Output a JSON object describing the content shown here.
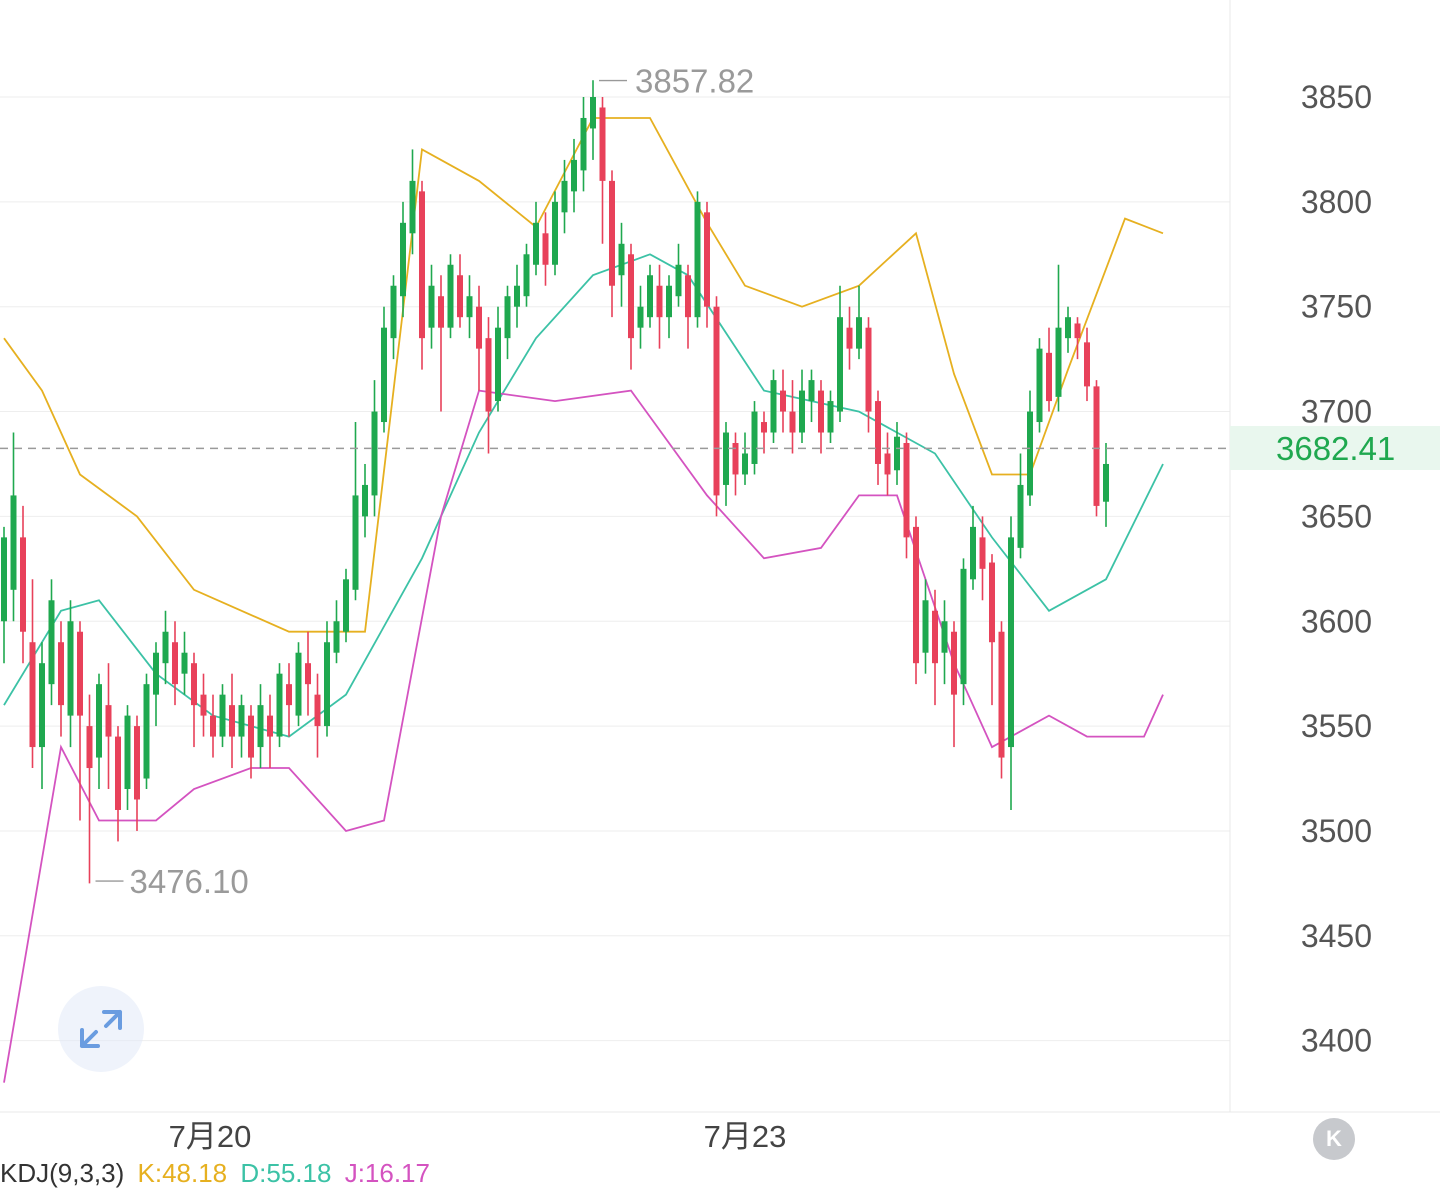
{
  "chart_data": {
    "type": "candlestick",
    "ylim": [
      3380,
      3900
    ],
    "y_ticks": [
      3850,
      3800,
      3750,
      3700,
      3650,
      3600,
      3550,
      3500,
      3450,
      3400
    ],
    "y_tick_labels": [
      "3850",
      "3800",
      "3750",
      "3700",
      "3650",
      "3600",
      "3550",
      "3500",
      "3450",
      "3400"
    ],
    "x_labels": [
      "7月20",
      "7月23"
    ],
    "last_price": 3682.41,
    "last_price_label": "3682.41",
    "max_marker": {
      "value": 3857.82,
      "label": "3857.82"
    },
    "min_marker": {
      "value": 3476.1,
      "label": "3476.10"
    },
    "indicator_legend": {
      "name": "KDJ(9,3,3)",
      "k": "K:48.18",
      "d": "D:55.18",
      "j": "J:16.17"
    },
    "colors": {
      "up": "#1fa84f",
      "down": "#e8415a",
      "upper_band": "#e6b020",
      "middle_band": "#3cc2a6",
      "lower_band": "#d453c0"
    },
    "candles": [
      [
        3600,
        3640,
        3580,
        3645
      ],
      [
        3615,
        3660,
        3600,
        3690
      ],
      [
        3640,
        3595,
        3580,
        3655
      ],
      [
        3590,
        3540,
        3530,
        3620
      ],
      [
        3540,
        3580,
        3520,
        3590
      ],
      [
        3570,
        3610,
        3560,
        3620
      ],
      [
        3590,
        3560,
        3545,
        3600
      ],
      [
        3555,
        3600,
        3540,
        3610
      ],
      [
        3595,
        3555,
        3505,
        3600
      ],
      [
        3550,
        3530,
        3475,
        3565
      ],
      [
        3535,
        3570,
        3520,
        3575
      ],
      [
        3560,
        3545,
        3520,
        3580
      ],
      [
        3545,
        3510,
        3495,
        3550
      ],
      [
        3520,
        3555,
        3510,
        3560
      ],
      [
        3550,
        3515,
        3500,
        3555
      ],
      [
        3525,
        3570,
        3520,
        3575
      ],
      [
        3565,
        3585,
        3550,
        3590
      ],
      [
        3580,
        3595,
        3570,
        3605
      ],
      [
        3590,
        3570,
        3560,
        3600
      ],
      [
        3575,
        3585,
        3565,
        3595
      ],
      [
        3580,
        3560,
        3540,
        3585
      ],
      [
        3565,
        3555,
        3545,
        3575
      ],
      [
        3555,
        3545,
        3535,
        3565
      ],
      [
        3545,
        3565,
        3540,
        3570
      ],
      [
        3560,
        3545,
        3530,
        3575
      ],
      [
        3545,
        3560,
        3535,
        3565
      ],
      [
        3555,
        3535,
        3525,
        3560
      ],
      [
        3540,
        3560,
        3530,
        3570
      ],
      [
        3555,
        3545,
        3530,
        3565
      ],
      [
        3545,
        3575,
        3540,
        3580
      ],
      [
        3570,
        3560,
        3545,
        3580
      ],
      [
        3555,
        3585,
        3550,
        3590
      ],
      [
        3580,
        3570,
        3555,
        3595
      ],
      [
        3565,
        3550,
        3535,
        3575
      ],
      [
        3550,
        3590,
        3545,
        3600
      ],
      [
        3585,
        3600,
        3580,
        3610
      ],
      [
        3595,
        3620,
        3590,
        3625
      ],
      [
        3615,
        3660,
        3610,
        3695
      ],
      [
        3650,
        3665,
        3640,
        3675
      ],
      [
        3660,
        3700,
        3650,
        3715
      ],
      [
        3695,
        3740,
        3690,
        3750
      ],
      [
        3735,
        3760,
        3725,
        3765
      ],
      [
        3755,
        3790,
        3745,
        3800
      ],
      [
        3785,
        3810,
        3775,
        3825
      ],
      [
        3805,
        3735,
        3720,
        3810
      ],
      [
        3740,
        3760,
        3730,
        3770
      ],
      [
        3755,
        3740,
        3700,
        3765
      ],
      [
        3740,
        3770,
        3735,
        3775
      ],
      [
        3765,
        3745,
        3740,
        3775
      ],
      [
        3745,
        3755,
        3735,
        3765
      ],
      [
        3750,
        3730,
        3710,
        3760
      ],
      [
        3735,
        3700,
        3680,
        3745
      ],
      [
        3705,
        3740,
        3700,
        3750
      ],
      [
        3735,
        3755,
        3725,
        3760
      ],
      [
        3750,
        3760,
        3740,
        3770
      ],
      [
        3755,
        3775,
        3750,
        3780
      ],
      [
        3770,
        3790,
        3765,
        3800
      ],
      [
        3785,
        3770,
        3760,
        3795
      ],
      [
        3770,
        3800,
        3765,
        3805
      ],
      [
        3795,
        3810,
        3785,
        3820
      ],
      [
        3805,
        3820,
        3795,
        3830
      ],
      [
        3815,
        3840,
        3805,
        3850
      ],
      [
        3835,
        3850,
        3820,
        3858
      ],
      [
        3845,
        3810,
        3780,
        3850
      ],
      [
        3810,
        3760,
        3745,
        3815
      ],
      [
        3765,
        3780,
        3750,
        3790
      ],
      [
        3775,
        3735,
        3720,
        3780
      ],
      [
        3740,
        3750,
        3730,
        3760
      ],
      [
        3745,
        3765,
        3740,
        3770
      ],
      [
        3760,
        3745,
        3730,
        3770
      ],
      [
        3745,
        3760,
        3735,
        3765
      ],
      [
        3755,
        3770,
        3750,
        3780
      ],
      [
        3765,
        3745,
        3730,
        3770
      ],
      [
        3745,
        3800,
        3740,
        3805
      ],
      [
        3795,
        3750,
        3740,
        3800
      ],
      [
        3750,
        3660,
        3650,
        3755
      ],
      [
        3665,
        3690,
        3655,
        3695
      ],
      [
        3685,
        3670,
        3660,
        3690
      ],
      [
        3670,
        3680,
        3665,
        3690
      ],
      [
        3675,
        3700,
        3670,
        3705
      ],
      [
        3695,
        3690,
        3680,
        3700
      ],
      [
        3690,
        3715,
        3685,
        3720
      ],
      [
        3710,
        3700,
        3690,
        3720
      ],
      [
        3700,
        3690,
        3680,
        3715
      ],
      [
        3690,
        3710,
        3685,
        3720
      ],
      [
        3705,
        3715,
        3695,
        3720
      ],
      [
        3710,
        3690,
        3680,
        3715
      ],
      [
        3690,
        3705,
        3685,
        3710
      ],
      [
        3700,
        3745,
        3695,
        3760
      ],
      [
        3740,
        3730,
        3720,
        3750
      ],
      [
        3730,
        3745,
        3725,
        3760
      ],
      [
        3740,
        3700,
        3690,
        3745
      ],
      [
        3705,
        3675,
        3665,
        3710
      ],
      [
        3680,
        3670,
        3660,
        3690
      ],
      [
        3672,
        3688,
        3665,
        3695
      ],
      [
        3685,
        3640,
        3630,
        3690
      ],
      [
        3645,
        3580,
        3570,
        3650
      ],
      [
        3585,
        3610,
        3575,
        3620
      ],
      [
        3605,
        3580,
        3560,
        3615
      ],
      [
        3585,
        3600,
        3570,
        3610
      ],
      [
        3595,
        3565,
        3540,
        3600
      ],
      [
        3570,
        3625,
        3560,
        3630
      ],
      [
        3620,
        3645,
        3615,
        3655
      ],
      [
        3640,
        3625,
        3610,
        3650
      ],
      [
        3628,
        3590,
        3560,
        3632
      ],
      [
        3595,
        3535,
        3525,
        3600
      ],
      [
        3540,
        3640,
        3510,
        3650
      ],
      [
        3635,
        3665,
        3630,
        3680
      ],
      [
        3660,
        3700,
        3655,
        3710
      ],
      [
        3695,
        3730,
        3690,
        3735
      ],
      [
        3728,
        3705,
        3700,
        3740
      ],
      [
        3707,
        3740,
        3700,
        3770
      ],
      [
        3735,
        3745,
        3728,
        3750
      ],
      [
        3742,
        3735,
        3725,
        3745
      ],
      [
        3733,
        3712,
        3705,
        3740
      ],
      [
        3712,
        3655,
        3650,
        3715
      ],
      [
        3657,
        3675,
        3645,
        3685
      ]
    ],
    "upper_band": [
      [
        0,
        3735
      ],
      [
        4,
        3710
      ],
      [
        8,
        3670
      ],
      [
        14,
        3650
      ],
      [
        20,
        3615
      ],
      [
        30,
        3595
      ],
      [
        38,
        3595
      ],
      [
        44,
        3825
      ],
      [
        50,
        3810
      ],
      [
        56,
        3788
      ],
      [
        62,
        3840
      ],
      [
        68,
        3840
      ],
      [
        74,
        3790
      ],
      [
        78,
        3760
      ],
      [
        84,
        3750
      ],
      [
        90,
        3760
      ],
      [
        96,
        3785
      ],
      [
        100,
        3718
      ],
      [
        104,
        3670
      ],
      [
        108,
        3670
      ],
      [
        112,
        3720
      ],
      [
        118,
        3792
      ],
      [
        122,
        3785
      ]
    ],
    "middle_band": [
      [
        0,
        3560
      ],
      [
        6,
        3605
      ],
      [
        10,
        3610
      ],
      [
        16,
        3575
      ],
      [
        22,
        3555
      ],
      [
        30,
        3545
      ],
      [
        36,
        3565
      ],
      [
        44,
        3630
      ],
      [
        50,
        3690
      ],
      [
        56,
        3735
      ],
      [
        62,
        3765
      ],
      [
        68,
        3775
      ],
      [
        72,
        3765
      ],
      [
        80,
        3710
      ],
      [
        90,
        3700
      ],
      [
        98,
        3680
      ],
      [
        104,
        3640
      ],
      [
        110,
        3605
      ],
      [
        116,
        3620
      ],
      [
        122,
        3675
      ]
    ],
    "lower_band": [
      [
        0,
        3380
      ],
      [
        6,
        3540
      ],
      [
        10,
        3505
      ],
      [
        16,
        3505
      ],
      [
        20,
        3520
      ],
      [
        26,
        3530
      ],
      [
        30,
        3530
      ],
      [
        36,
        3500
      ],
      [
        40,
        3505
      ],
      [
        46,
        3650
      ],
      [
        50,
        3710
      ],
      [
        58,
        3705
      ],
      [
        66,
        3710
      ],
      [
        74,
        3660
      ],
      [
        80,
        3630
      ],
      [
        86,
        3635
      ],
      [
        90,
        3660
      ],
      [
        94,
        3660
      ],
      [
        100,
        3580
      ],
      [
        104,
        3540
      ],
      [
        110,
        3555
      ],
      [
        114,
        3545
      ],
      [
        120,
        3545
      ],
      [
        122,
        3565
      ]
    ]
  },
  "ui": {
    "expand_icon": "expand-arrows-icon",
    "k_button_label": "K"
  }
}
